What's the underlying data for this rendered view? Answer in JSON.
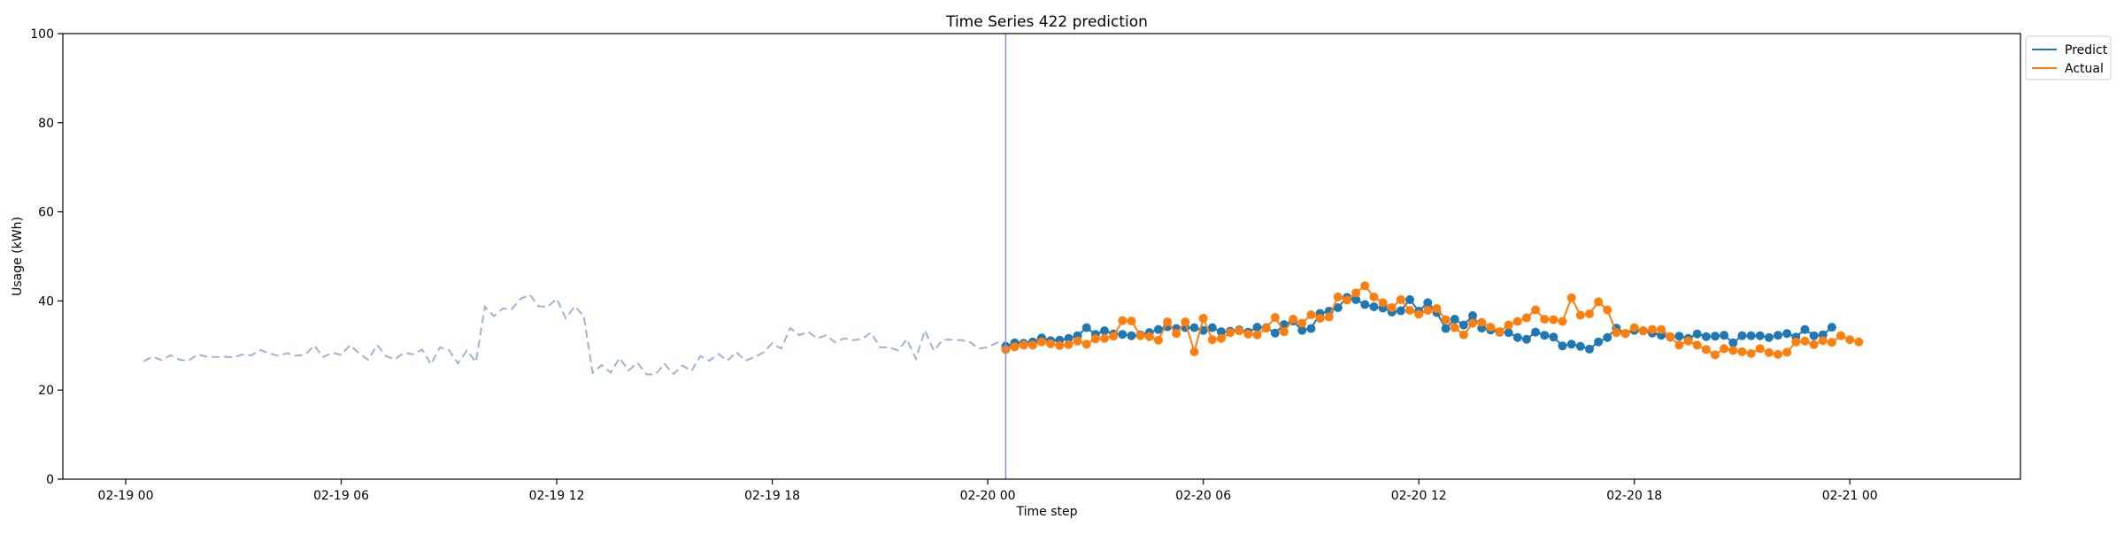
{
  "chart_data": {
    "type": "line",
    "title": "Time Series 422 prediction",
    "xlabel": "Time step",
    "ylabel": "Usage (kWh)",
    "ylim": [
      0,
      100
    ],
    "yticks": [
      0,
      20,
      40,
      60,
      80,
      100
    ],
    "xlim": [
      "2019-02-18T22:15",
      "2019-02-21T04:45"
    ],
    "xticks": [
      {
        "value": "2019-02-19T00:00",
        "label": "02-19 00"
      },
      {
        "value": "2019-02-19T06:00",
        "label": "02-19 06"
      },
      {
        "value": "2019-02-19T12:00",
        "label": "02-19 12"
      },
      {
        "value": "2019-02-19T18:00",
        "label": "02-19 18"
      },
      {
        "value": "2019-02-20T00:00",
        "label": "02-20 00"
      },
      {
        "value": "2019-02-20T06:00",
        "label": "02-20 06"
      },
      {
        "value": "2019-02-20T12:00",
        "label": "02-20 12"
      },
      {
        "value": "2019-02-20T18:00",
        "label": "02-20 18"
      },
      {
        "value": "2019-02-21T00:00",
        "label": "02-21 00"
      }
    ],
    "grid": false,
    "legend_position": "outside top-right",
    "forecast_start": "2019-02-20T00:30",
    "history": {
      "x_start": "2019-02-19T00:30",
      "x_step_minutes": 15,
      "color": "#9bb3d4",
      "style": "dashed",
      "values": [
        26.5,
        27.5,
        26.7,
        27.8,
        26.8,
        26.6,
        28.0,
        27.5,
        27.4,
        27.5,
        27.3,
        28.0,
        27.8,
        29.0,
        28.2,
        27.7,
        28.3,
        27.7,
        28.0,
        30.0,
        27.4,
        28.4,
        27.9,
        30.1,
        28.2,
        26.8,
        30.1,
        27.6,
        26.9,
        28.4,
        28.0,
        29.1,
        25.8,
        29.6,
        29.0,
        26.0,
        28.9,
        26.3,
        38.7,
        36.6,
        38.3,
        38.2,
        40.5,
        41.4,
        38.8,
        38.7,
        40.5,
        36.1,
        38.8,
        36.7,
        23.9,
        25.6,
        23.9,
        27.2,
        24.4,
        26.1,
        23.5,
        23.5,
        25.9,
        23.6,
        25.5,
        24.3,
        27.6,
        26.6,
        28.1,
        26.6,
        28.5,
        26.6,
        27.4,
        28.4,
        30.5,
        29.3,
        33.9,
        32.3,
        33.1,
        31.6,
        32.3,
        30.7,
        31.6,
        31.2,
        31.5,
        32.9,
        29.6,
        29.6,
        28.9,
        31.4,
        27.0,
        33.4,
        28.8,
        31.3,
        31.3,
        31.2,
        30.8,
        29.3,
        29.6,
        30.6,
        30.7
      ]
    },
    "x_start": "2019-02-20T00:30",
    "x_step_minutes": 15,
    "series": [
      {
        "name": "Predict",
        "color": "#1f77b4",
        "values": [
          29.8,
          30.6,
          30.5,
          30.8,
          31.7,
          31.1,
          31.2,
          31.6,
          32.2,
          34.0,
          32.5,
          33.3,
          32.6,
          32.5,
          32.2,
          32.4,
          32.9,
          33.6,
          34.2,
          33.8,
          34.0,
          34.0,
          33.4,
          34.0,
          33.1,
          33.2,
          33.5,
          33.0,
          34.1,
          34.0,
          32.8,
          34.7,
          35.5,
          33.4,
          33.8,
          37.2,
          37.7,
          38.5,
          40.8,
          40.3,
          39.2,
          38.7,
          38.4,
          37.5,
          37.8,
          40.3,
          37.7,
          39.6,
          37.4,
          33.8,
          35.9,
          34.6,
          36.7,
          33.9,
          33.5,
          33.0,
          32.9,
          31.8,
          31.4,
          33.0,
          32.3,
          31.9,
          29.9,
          30.3,
          29.8,
          29.2,
          30.8,
          31.8,
          33.9,
          32.7,
          33.4,
          33.3,
          32.8,
          32.3,
          31.9,
          32.1,
          31.6,
          32.6,
          32.0,
          32.1,
          32.3,
          30.6,
          32.2,
          32.2,
          32.2,
          31.8,
          32.3,
          32.7,
          31.9,
          33.6,
          32.2,
          32.4,
          34.1
        ]
      },
      {
        "name": "Actual",
        "color": "#ff7f0e",
        "values": [
          29.1,
          29.7,
          30.1,
          30.1,
          30.8,
          30.4,
          30.0,
          30.2,
          31.0,
          30.3,
          31.5,
          31.6,
          32.1,
          35.6,
          35.5,
          32.2,
          32.0,
          31.2,
          35.3,
          32.7,
          35.3,
          28.6,
          36.1,
          31.3,
          31.6,
          32.9,
          33.3,
          32.6,
          32.4,
          33.9,
          36.3,
          33.1,
          35.9,
          35.0,
          36.9,
          36.1,
          36.4,
          40.9,
          40.2,
          41.8,
          43.4,
          40.9,
          39.6,
          38.5,
          40.3,
          37.9,
          37.0,
          37.9,
          38.3,
          35.8,
          34.0,
          32.4,
          35.0,
          35.2,
          34.1,
          33.1,
          34.6,
          35.4,
          36.2,
          38.0,
          35.9,
          35.8,
          35.4,
          40.7,
          36.8,
          37.1,
          39.8,
          38.0,
          32.9,
          32.7,
          34.0,
          33.3,
          33.6,
          33.6,
          32.0,
          30.1,
          31.0,
          30.1,
          29.1,
          27.9,
          29.3,
          28.9,
          28.6,
          28.2,
          29.3,
          28.4,
          28.0,
          28.5,
          30.8,
          31.0,
          30.2,
          31.1,
          30.7,
          32.2,
          31.3,
          30.8
        ]
      }
    ]
  }
}
